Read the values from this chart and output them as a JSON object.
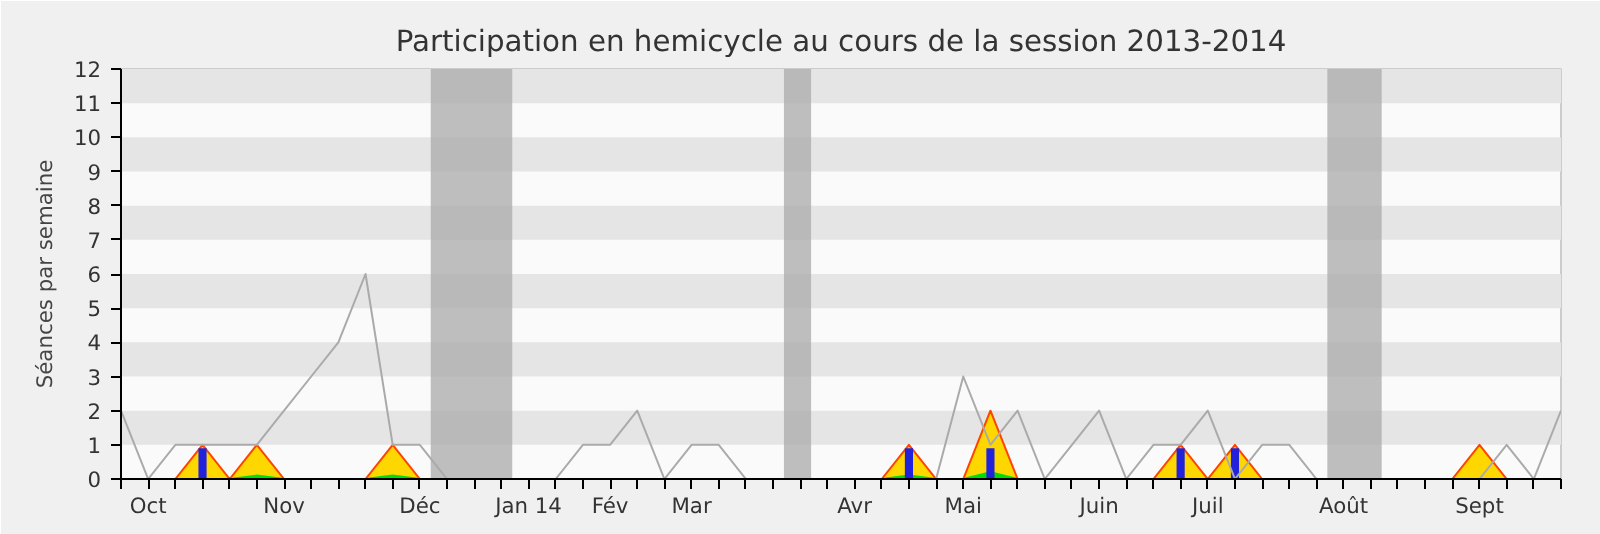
{
  "chart_data": {
    "type": "line",
    "title": "Participation en hemicycle au cours de la session 2013-2014",
    "ylabel": "Séances par semaine",
    "categories": [
      null,
      "Oct",
      null,
      null,
      null,
      null,
      "Nov",
      null,
      null,
      null,
      null,
      "Déc",
      null,
      null,
      null,
      "Jan 14",
      null,
      null,
      "Fév",
      null,
      null,
      "Mar",
      null,
      null,
      null,
      null,
      null,
      "Avr",
      null,
      null,
      null,
      "Mai",
      null,
      null,
      null,
      null,
      "Juin",
      null,
      null,
      null,
      "Juil",
      null,
      null,
      null,
      null,
      "Août",
      null,
      null,
      null,
      null,
      "Sept",
      null,
      null,
      null
    ],
    "series": [
      {
        "type": "area",
        "color": "#ffd700",
        "values": [
          0,
          0,
          0,
          1,
          0,
          1,
          0,
          0,
          0,
          0,
          1,
          0,
          0,
          0,
          0,
          0,
          0,
          0,
          0,
          0,
          0,
          0,
          0,
          0,
          0,
          0,
          0,
          0,
          0,
          1,
          0,
          0,
          2,
          0,
          0,
          0,
          0,
          0,
          0,
          1,
          0,
          1,
          0,
          0,
          0,
          0,
          0,
          0,
          0,
          0,
          1,
          0,
          0,
          0
        ]
      },
      {
        "type": "area",
        "color": "#00dd00",
        "values": [
          0,
          0,
          0,
          0,
          0,
          0.1,
          0,
          0,
          0,
          0,
          0.1,
          0,
          0,
          0,
          0,
          0,
          0,
          0,
          0,
          0,
          0,
          0,
          0,
          0,
          0,
          0,
          0,
          0,
          0,
          0.1,
          0,
          0,
          0.2,
          0,
          0,
          0,
          0,
          0,
          0,
          0,
          0,
          0,
          0,
          0,
          0,
          0,
          0,
          0,
          0,
          0,
          0,
          0,
          0,
          0
        ]
      },
      {
        "type": "bar",
        "color": "#2222dd",
        "values": [
          null,
          null,
          null,
          0.9,
          null,
          null,
          null,
          null,
          null,
          null,
          null,
          null,
          null,
          null,
          null,
          null,
          null,
          null,
          null,
          null,
          null,
          null,
          null,
          null,
          null,
          null,
          null,
          null,
          null,
          0.9,
          null,
          null,
          0.9,
          null,
          null,
          null,
          null,
          null,
          null,
          0.9,
          null,
          0.9,
          null,
          null,
          null,
          null,
          null,
          null,
          null,
          null,
          null,
          null,
          null,
          null
        ]
      },
      {
        "color": "#aaaaaa",
        "values": [
          2,
          0,
          1,
          1,
          1,
          1,
          2,
          3,
          4,
          6,
          1,
          1,
          0,
          0,
          0,
          0,
          0,
          1,
          1,
          2,
          0,
          1,
          1,
          0,
          0,
          0,
          0,
          0,
          0,
          0,
          0,
          3,
          1,
          2,
          0,
          1,
          2,
          0,
          1,
          1,
          2,
          0,
          1,
          1,
          0,
          0,
          0,
          0,
          0,
          0,
          0,
          1,
          0,
          2
        ]
      }
    ],
    "ylim": [
      0,
      12
    ],
    "yticks": [
      0,
      1,
      2,
      3,
      4,
      5,
      6,
      7,
      8,
      9,
      10,
      11,
      12
    ]
  }
}
